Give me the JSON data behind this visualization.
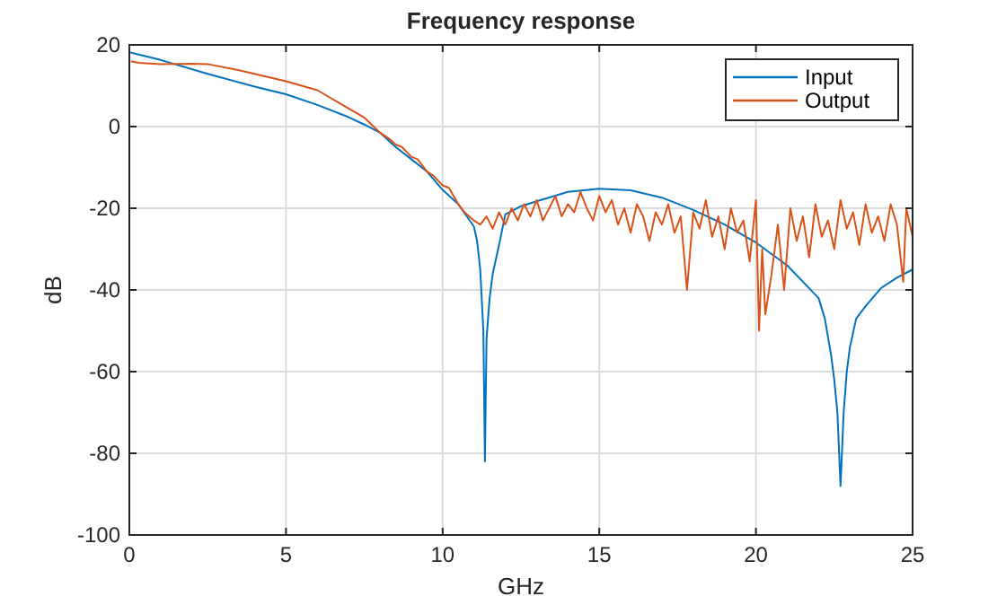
{
  "chart_data": {
    "type": "line",
    "title": "Frequency response",
    "xlabel": "GHz",
    "ylabel": "dB",
    "xlim": [
      0,
      25
    ],
    "ylim": [
      -100,
      20
    ],
    "xticks": [
      0,
      5,
      10,
      15,
      20,
      25
    ],
    "yticks": [
      -100,
      -80,
      -60,
      -40,
      -20,
      0,
      20
    ],
    "grid": true,
    "legend": "top right",
    "series": [
      {
        "name": "Input",
        "color": "#0072bd",
        "x": [
          0,
          1,
          2.5,
          4,
          5,
          6,
          7,
          7.5,
          8,
          8.5,
          9,
          9.5,
          10,
          10.5,
          11,
          11.1,
          11.2,
          11.3,
          11.35,
          11.4,
          11.5,
          11.6,
          11.8,
          12,
          12.5,
          13,
          14,
          15,
          16,
          17,
          18,
          19,
          20,
          21,
          21.5,
          22,
          22.2,
          22.4,
          22.5,
          22.6,
          22.7,
          22.8,
          22.9,
          23,
          23.2,
          23.5,
          24,
          24.5,
          25
        ],
        "values": [
          18.2,
          16.3,
          12.9,
          9.8,
          7.9,
          5.3,
          2.3,
          0.5,
          -1.5,
          -5,
          -8,
          -11,
          -15.5,
          -19,
          -24.5,
          -28,
          -35,
          -50,
          -82,
          -52,
          -42,
          -36,
          -29,
          -21.5,
          -19.5,
          -18.3,
          -16,
          -15.2,
          -15.6,
          -17.4,
          -20.4,
          -24,
          -28.4,
          -34,
          -38,
          -42,
          -47,
          -56,
          -62,
          -70,
          -88,
          -70,
          -60,
          -54,
          -47,
          -44,
          -39.5,
          -37,
          -35
        ]
      },
      {
        "name": "Output",
        "color": "#d95319",
        "x": [
          0.05,
          0.3,
          1,
          2,
          2.5,
          3.5,
          5,
          6,
          7,
          7.5,
          8,
          8.3,
          8.5,
          8.7,
          9,
          9.2,
          9.5,
          9.7,
          10,
          10.2,
          10.5,
          10.7,
          11,
          11.2,
          11.4,
          11.6,
          11.8,
          12.0,
          12.2,
          12.4,
          12.6,
          12.8,
          13.0,
          13.2,
          13.4,
          13.6,
          13.8,
          14.0,
          14.2,
          14.4,
          14.6,
          14.8,
          15.0,
          15.2,
          15.4,
          15.6,
          15.8,
          16.0,
          16.2,
          16.4,
          16.6,
          16.8,
          17.0,
          17.2,
          17.4,
          17.6,
          17.8,
          18.0,
          18.2,
          18.4,
          18.6,
          18.8,
          19.0,
          19.2,
          19.4,
          19.6,
          19.8,
          20.0,
          20.1,
          20.2,
          20.3,
          20.5,
          20.7,
          20.9,
          21.1,
          21.3,
          21.5,
          21.7,
          21.9,
          22.1,
          22.3,
          22.5,
          22.7,
          22.9,
          23.1,
          23.3,
          23.5,
          23.7,
          23.9,
          24.1,
          24.3,
          24.5,
          24.7,
          24.8,
          25
        ],
        "values": [
          16,
          15.6,
          15.3,
          15.4,
          15.3,
          13.8,
          11.1,
          8.9,
          4.4,
          2.2,
          -1.5,
          -3,
          -4.4,
          -5,
          -7.4,
          -8,
          -11,
          -12,
          -14.4,
          -15,
          -19,
          -21,
          -23,
          -24,
          -22,
          -25,
          -21,
          -24,
          -20,
          -23,
          -19,
          -22,
          -18,
          -23,
          -20,
          -17,
          -22,
          -19,
          -21,
          -16,
          -20,
          -23,
          -17,
          -21,
          -18,
          -24,
          -20,
          -26,
          -19,
          -22,
          -28,
          -21,
          -24,
          -19,
          -26,
          -22,
          -40,
          -21,
          -25,
          -18,
          -27,
          -22,
          -30,
          -20,
          -26,
          -23,
          -33,
          -18,
          -50,
          -30,
          -46,
          -36,
          -24,
          -40,
          -20,
          -28,
          -22,
          -32,
          -19,
          -27,
          -23,
          -30,
          -18,
          -25,
          -21,
          -29,
          -19,
          -26,
          -22,
          -28,
          -19,
          -24,
          -38,
          -20,
          -27
        ]
      }
    ]
  }
}
